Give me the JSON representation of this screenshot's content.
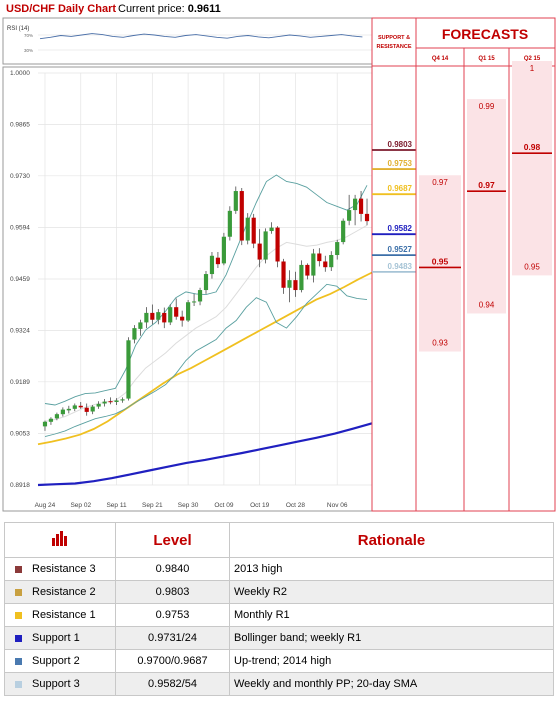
{
  "header": {
    "title": "USD/CHF Daily Chart",
    "price_label": "Current price:",
    "price": "0.9611"
  },
  "rsi_label": "RSI (14)",
  "rsi_ticks": [
    "70%",
    "30%"
  ],
  "columns": {
    "support_resistance": "SUPPORT & RESISTANCE",
    "forecasts": "FORECASTS",
    "quarters": [
      "Q4 14",
      "Q1 15",
      "Q2 15"
    ]
  },
  "chart_data": {
    "type": "candlestick",
    "ylim": [
      0.8918,
      1.0
    ],
    "y_ticks": [
      "1.0000",
      "0.9865",
      "0.9730",
      "0.9594",
      "0.9459",
      "0.9324",
      "0.9189",
      "0.9053",
      "0.8918"
    ],
    "x_ticks": [
      "Aug 24",
      "Sep 02",
      "Sep 11",
      "Sep 21",
      "Sep 30",
      "Oct 09",
      "Oct 19",
      "Oct 28",
      "Nov 06"
    ],
    "candles": [
      [
        0.9072,
        0.9087,
        0.906,
        0.9084
      ],
      [
        0.9084,
        0.9096,
        0.9076,
        0.9092
      ],
      [
        0.9093,
        0.9108,
        0.9088,
        0.9104
      ],
      [
        0.9104,
        0.9122,
        0.9098,
        0.9116
      ],
      [
        0.9114,
        0.9126,
        0.9106,
        0.9118
      ],
      [
        0.9118,
        0.9132,
        0.9112,
        0.9127
      ],
      [
        0.9126,
        0.9136,
        0.9118,
        0.9122
      ],
      [
        0.9121,
        0.9132,
        0.91,
        0.911
      ],
      [
        0.9111,
        0.9128,
        0.9104,
        0.9124
      ],
      [
        0.9124,
        0.9138,
        0.9118,
        0.9131
      ],
      [
        0.9132,
        0.9144,
        0.9124,
        0.9137
      ],
      [
        0.9138,
        0.9148,
        0.913,
        0.9136
      ],
      [
        0.9136,
        0.9146,
        0.9128,
        0.914
      ],
      [
        0.914,
        0.9148,
        0.9134,
        0.9143
      ],
      [
        0.9145,
        0.9306,
        0.914,
        0.9298
      ],
      [
        0.93,
        0.9338,
        0.929,
        0.933
      ],
      [
        0.9328,
        0.9352,
        0.931,
        0.9345
      ],
      [
        0.9345,
        0.9385,
        0.933,
        0.937
      ],
      [
        0.937,
        0.9392,
        0.934,
        0.9352
      ],
      [
        0.9352,
        0.938,
        0.934,
        0.9372
      ],
      [
        0.937,
        0.9384,
        0.933,
        0.9345
      ],
      [
        0.9345,
        0.9392,
        0.9338,
        0.9385
      ],
      [
        0.9385,
        0.9408,
        0.9352,
        0.936
      ],
      [
        0.936,
        0.9376,
        0.9334,
        0.935
      ],
      [
        0.935,
        0.9404,
        0.9346,
        0.9398
      ],
      [
        0.9398,
        0.942,
        0.9388,
        0.94
      ],
      [
        0.94,
        0.9436,
        0.939,
        0.943
      ],
      [
        0.943,
        0.948,
        0.942,
        0.9472
      ],
      [
        0.9472,
        0.953,
        0.946,
        0.952
      ],
      [
        0.9515,
        0.953,
        0.9488,
        0.9498
      ],
      [
        0.95,
        0.958,
        0.9495,
        0.957
      ],
      [
        0.957,
        0.965,
        0.956,
        0.9638
      ],
      [
        0.9638,
        0.9702,
        0.963,
        0.969
      ],
      [
        0.969,
        0.9698,
        0.9548,
        0.956
      ],
      [
        0.956,
        0.9632,
        0.955,
        0.962
      ],
      [
        0.962,
        0.963,
        0.954,
        0.9552
      ],
      [
        0.9552,
        0.959,
        0.949,
        0.951
      ],
      [
        0.951,
        0.9592,
        0.95,
        0.9584
      ],
      [
        0.9585,
        0.9608,
        0.9578,
        0.9594
      ],
      [
        0.9594,
        0.9598,
        0.949,
        0.9505
      ],
      [
        0.9505,
        0.9512,
        0.942,
        0.9436
      ],
      [
        0.9436,
        0.9482,
        0.9398,
        0.9456
      ],
      [
        0.9456,
        0.9478,
        0.9412,
        0.943
      ],
      [
        0.943,
        0.9508,
        0.9424,
        0.9496
      ],
      [
        0.9496,
        0.95,
        0.9458,
        0.9468
      ],
      [
        0.9468,
        0.9538,
        0.945,
        0.9526
      ],
      [
        0.9526,
        0.954,
        0.9492,
        0.9506
      ],
      [
        0.9505,
        0.952,
        0.9478,
        0.949
      ],
      [
        0.949,
        0.9532,
        0.948,
        0.9522
      ],
      [
        0.9522,
        0.9562,
        0.951,
        0.9556
      ],
      [
        0.9556,
        0.9618,
        0.955,
        0.9612
      ],
      [
        0.9612,
        0.968,
        0.96,
        0.964
      ],
      [
        0.964,
        0.968,
        0.96,
        0.967
      ],
      [
        0.967,
        0.969,
        0.961,
        0.963
      ],
      [
        0.963,
        0.967,
        0.96,
        0.9611
      ]
    ],
    "bollinger_upper": [
      0.9132,
      0.9128,
      0.9138,
      0.915,
      0.9158,
      0.916,
      0.9166,
      0.9172,
      0.922,
      0.9285,
      0.9325,
      0.9345,
      0.9375,
      0.941,
      0.9425,
      0.942,
      0.9418,
      0.9425,
      0.947,
      0.9535,
      0.96,
      0.966,
      0.9715,
      0.9732,
      0.9715,
      0.971,
      0.97,
      0.968,
      0.966,
      0.965,
      0.964,
      0.9655,
      0.9705
    ],
    "bollinger_lower": [
      0.9045,
      0.9052,
      0.906,
      0.9072,
      0.9082,
      0.9092,
      0.9098,
      0.9105,
      0.9118,
      0.9135,
      0.915,
      0.9165,
      0.9182,
      0.921,
      0.9245,
      0.927,
      0.9285,
      0.93,
      0.933,
      0.935,
      0.9385,
      0.941,
      0.9398,
      0.9345,
      0.933,
      0.936,
      0.9395,
      0.942,
      0.9445,
      0.944,
      0.9415,
      0.9408,
      0.9405
    ],
    "bollinger_mid": [
      0.9085,
      0.909,
      0.9098,
      0.911,
      0.9122,
      0.913,
      0.9136,
      0.914,
      0.916,
      0.9195,
      0.9225,
      0.9245,
      0.9265,
      0.929,
      0.931,
      0.933,
      0.9345,
      0.936,
      0.9385,
      0.942,
      0.9455,
      0.949,
      0.952,
      0.954,
      0.9555,
      0.955,
      0.9545,
      0.9548,
      0.9555,
      0.956,
      0.957,
      0.9585,
      0.96
    ],
    "sma_yellow": [
      0.9025,
      0.9032,
      0.904,
      0.905,
      0.9065,
      0.9085,
      0.911,
      0.9135,
      0.916,
      0.9185,
      0.9208,
      0.9225,
      0.9245,
      0.9265,
      0.9285,
      0.9305,
      0.9325,
      0.9345,
      0.9365,
      0.9385,
      0.9405,
      0.942,
      0.9438,
      0.9458,
      0.9476
    ],
    "sma_blue": [
      0.8918,
      0.892,
      0.8922,
      0.8928,
      0.8936,
      0.8946,
      0.8956,
      0.8966,
      0.8976,
      0.8984,
      0.8993,
      0.9002,
      0.9012,
      0.9022,
      0.9032,
      0.9042,
      0.9053,
      0.9066,
      0.908
    ],
    "levels": [
      {
        "label": "0.9803",
        "value": 0.9803,
        "color": "#7b1a2c"
      },
      {
        "label": "0.9753",
        "value": 0.9753,
        "color": "#e0b030"
      },
      {
        "label": "0.9687",
        "value": 0.9687,
        "color": "#f0c020"
      },
      {
        "label": "0.9582",
        "value": 0.9582,
        "color": "#1f1fbf"
      },
      {
        "label": "0.9527",
        "value": 0.9527,
        "color": "#3b6fa8"
      },
      {
        "label": "0.9483",
        "value": 0.9483,
        "color": "#a6c4d6"
      }
    ],
    "forecasts": [
      {
        "quarter": "Q4 14",
        "high": 0.97,
        "mid": 0.95,
        "low": 0.93,
        "labels": [
          "0.97",
          "0.95",
          "0.93"
        ]
      },
      {
        "quarter": "Q1 15",
        "high": 0.99,
        "mid": 0.97,
        "low": 0.94,
        "labels": [
          "0.99",
          "0.97",
          "0.94"
        ]
      },
      {
        "quarter": "Q2 15",
        "high": 1.0,
        "mid": 0.98,
        "low": 0.95,
        "labels": [
          "1",
          "0.98",
          "0.95"
        ]
      }
    ]
  },
  "table": {
    "headers": [
      "Level",
      "Rationale"
    ],
    "rows": [
      {
        "name": "Resistance 3",
        "level": "0.9840",
        "rationale": "2013 high",
        "color": "#8b3a3a"
      },
      {
        "name": "Resistance 2",
        "level": "0.9803",
        "rationale": "Weekly R2",
        "color": "#c8a040"
      },
      {
        "name": "Resistance 1",
        "level": "0.9753",
        "rationale": "Monthly R1",
        "color": "#f0c020"
      },
      {
        "name": "Support 1",
        "level": "0.9731/24",
        "rationale": "Bollinger band; weekly R1",
        "color": "#1f1fbf"
      },
      {
        "name": "Support 2",
        "level": "0.9700/0.9687",
        "rationale": "Up-trend; 2014 high",
        "color": "#4a7ab0"
      },
      {
        "name": "Support 3",
        "level": "0.9582/54",
        "rationale": "Weekly and monthly PP; 20-day SMA",
        "color": "#b8cfe0"
      }
    ]
  },
  "colors": {
    "up": "#3a9a3a",
    "down": "#c00000",
    "forecast_bg": "#fbe3e6",
    "grid": "#e4e4e4"
  }
}
